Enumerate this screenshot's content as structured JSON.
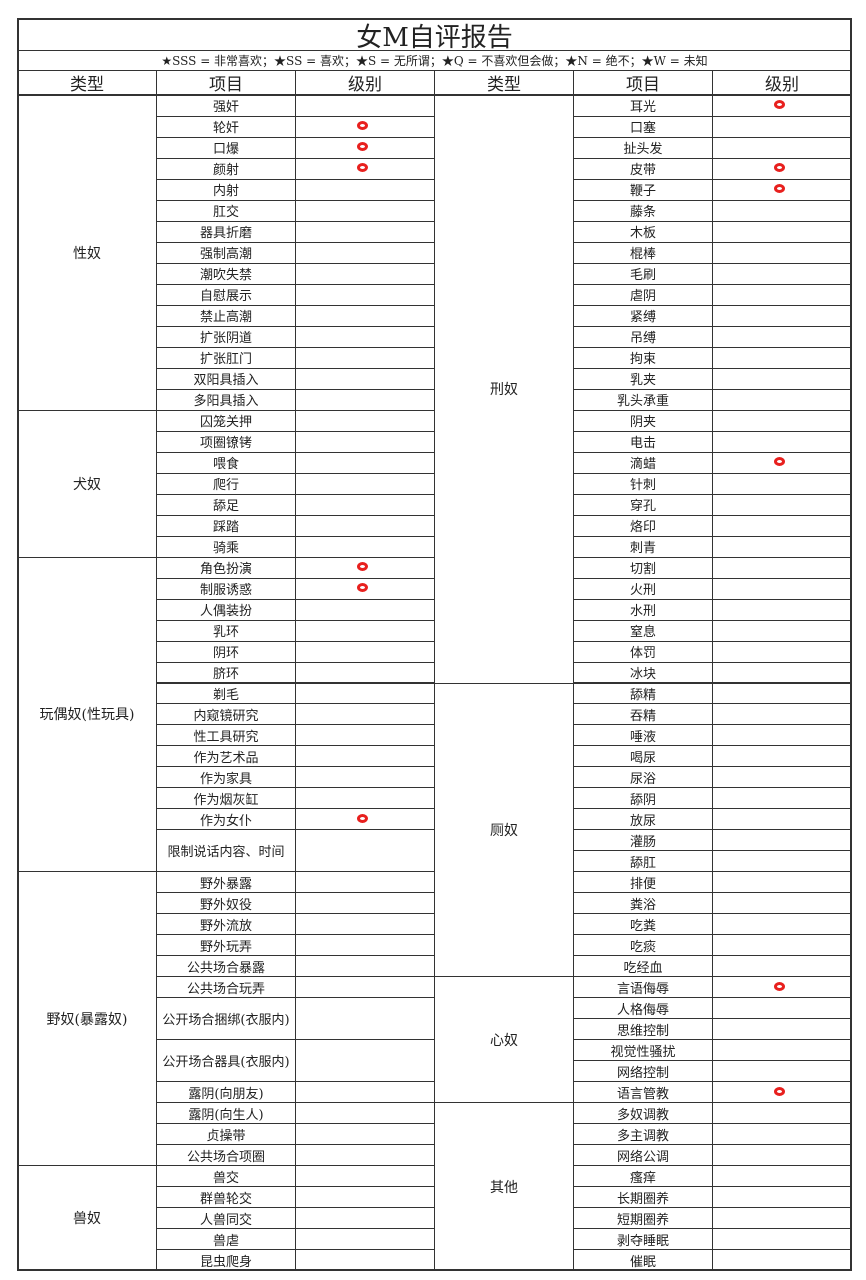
{
  "title": "女M自评报告",
  "legend": "★SSS = 非常喜欢；★SS = 喜欢；★S = 无所谓；★Q = 不喜欢但会做；★N = 绝不；★W = 未知",
  "headers": {
    "type": "类型",
    "item": "项目",
    "level": "级别"
  },
  "mark_color": "#e8201e",
  "left": [
    {
      "type": "性奴",
      "items": [
        {
          "name": "强奸"
        },
        {
          "name": "轮奸",
          "mark": true
        },
        {
          "name": "口爆",
          "mark": true
        },
        {
          "name": "颜射",
          "mark": true
        },
        {
          "name": "内射"
        },
        {
          "name": "肛交"
        },
        {
          "name": "器具折磨"
        },
        {
          "name": "强制高潮"
        },
        {
          "name": "潮吹失禁"
        },
        {
          "name": "自慰展示"
        },
        {
          "name": "禁止高潮"
        },
        {
          "name": "扩张阴道"
        },
        {
          "name": "扩张肛门"
        },
        {
          "name": "双阳具插入"
        },
        {
          "name": "多阳具插入"
        }
      ]
    },
    {
      "type": "犬奴",
      "items": [
        {
          "name": "囚笼关押"
        },
        {
          "name": "项圈镣铐"
        },
        {
          "name": "喂食"
        },
        {
          "name": "爬行"
        },
        {
          "name": "舔足"
        },
        {
          "name": "踩踏"
        },
        {
          "name": "骑乘"
        }
      ]
    },
    {
      "type": "玩偶奴(性玩具)",
      "items": [
        {
          "name": "角色扮演",
          "mark": true
        },
        {
          "name": "制服诱惑",
          "mark": true
        },
        {
          "name": "人偶装扮"
        },
        {
          "name": "乳环"
        },
        {
          "name": "阴环"
        },
        {
          "name": "脐环"
        },
        {
          "name": "剃毛"
        },
        {
          "name": "内窥镜研究"
        },
        {
          "name": "性工具研究"
        },
        {
          "name": "作为艺术品"
        },
        {
          "name": "作为家具"
        },
        {
          "name": "作为烟灰缸"
        },
        {
          "name": "作为女仆",
          "mark": true
        },
        {
          "name": "限制说话内容、时间",
          "span": 2
        }
      ]
    },
    {
      "type": "野奴(暴露奴)",
      "items": [
        {
          "name": "野外暴露"
        },
        {
          "name": "野外奴役"
        },
        {
          "name": "野外流放"
        },
        {
          "name": "野外玩弄"
        },
        {
          "name": "公共场合暴露"
        },
        {
          "name": "公共场合玩弄"
        },
        {
          "name": "公开场合捆绑(衣服内)",
          "span": 2
        },
        {
          "name": "公开场合器具(衣服内)",
          "span": 2
        },
        {
          "name": "露阴(向朋友)"
        },
        {
          "name": "露阴(向生人)"
        },
        {
          "name": "贞操带"
        },
        {
          "name": "公共场合项圈"
        }
      ]
    },
    {
      "type": "兽奴",
      "items": [
        {
          "name": "兽交"
        },
        {
          "name": "群兽轮交"
        },
        {
          "name": "人兽同交"
        },
        {
          "name": "兽虐"
        },
        {
          "name": "昆虫爬身"
        }
      ]
    }
  ],
  "right": [
    {
      "type": "刑奴",
      "items": [
        {
          "name": "耳光",
          "mark": true
        },
        {
          "name": "口塞"
        },
        {
          "name": "扯头发"
        },
        {
          "name": "皮带",
          "mark": true
        },
        {
          "name": "鞭子",
          "mark": true
        },
        {
          "name": "藤条"
        },
        {
          "name": "木板"
        },
        {
          "name": "棍棒"
        },
        {
          "name": "毛刷"
        },
        {
          "name": "虐阴"
        },
        {
          "name": "紧缚"
        },
        {
          "name": "吊缚"
        },
        {
          "name": "拘束"
        },
        {
          "name": "乳夹"
        },
        {
          "name": "乳头承重"
        },
        {
          "name": "阴夹"
        },
        {
          "name": "电击"
        },
        {
          "name": "滴蜡",
          "mark": true
        },
        {
          "name": "针刺"
        },
        {
          "name": "穿孔"
        },
        {
          "name": "烙印"
        },
        {
          "name": "刺青"
        },
        {
          "name": "切割"
        },
        {
          "name": "火刑"
        },
        {
          "name": "水刑"
        },
        {
          "name": "窒息"
        },
        {
          "name": "体罚"
        },
        {
          "name": "冰块"
        }
      ]
    },
    {
      "type": "厕奴",
      "items": [
        {
          "name": "舔精"
        },
        {
          "name": "吞精"
        },
        {
          "name": "唾液"
        },
        {
          "name": "喝尿"
        },
        {
          "name": "尿浴"
        },
        {
          "name": "舔阴"
        },
        {
          "name": "放尿"
        },
        {
          "name": "灌肠"
        },
        {
          "name": "舔肛"
        },
        {
          "name": "排便"
        },
        {
          "name": "粪浴"
        },
        {
          "name": "吃粪"
        },
        {
          "name": "吃痰"
        },
        {
          "name": "吃经血"
        }
      ]
    },
    {
      "type": "心奴",
      "items": [
        {
          "name": "言语侮辱",
          "mark": true
        },
        {
          "name": "人格侮辱"
        },
        {
          "name": "思维控制"
        },
        {
          "name": "视觉性骚扰"
        },
        {
          "name": "网络控制"
        },
        {
          "name": "语言管教",
          "mark": true
        }
      ]
    },
    {
      "type": "其他",
      "items": [
        {
          "name": "多奴调教"
        },
        {
          "name": "多主调教"
        },
        {
          "name": "网络公调"
        },
        {
          "name": "瘙痒"
        },
        {
          "name": "长期圈养"
        },
        {
          "name": "短期圈养"
        },
        {
          "name": "剥夺睡眠"
        },
        {
          "name": "催眠"
        }
      ]
    }
  ]
}
